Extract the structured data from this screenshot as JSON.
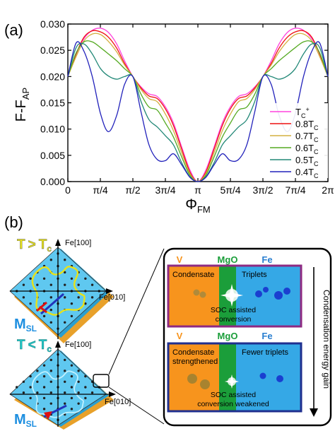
{
  "panel_a_label": "(a)",
  "panel_b_label": "(b)",
  "chart_data": {
    "type": "line",
    "xlabel": "Φ",
    "xlabel_sub": "FM",
    "ylabel": "F-F",
    "ylabel_sub": "AP",
    "xlim": [
      0,
      6.2832
    ],
    "ylim": [
      0,
      0.03
    ],
    "x_ticks": [
      {
        "v": 0,
        "label": "0"
      },
      {
        "v": 0.7854,
        "label": "π/4"
      },
      {
        "v": 1.5708,
        "label": "π/2"
      },
      {
        "v": 2.3562,
        "label": "3π/4"
      },
      {
        "v": 3.1416,
        "label": "π"
      },
      {
        "v": 3.927,
        "label": "5π/4"
      },
      {
        "v": 4.7124,
        "label": "3π/2"
      },
      {
        "v": 5.4978,
        "label": "7π/4"
      },
      {
        "v": 6.2832,
        "label": "2π"
      }
    ],
    "y_ticks": [
      {
        "v": 0,
        "label": "0.000"
      },
      {
        "v": 0.005,
        "label": "0.005"
      },
      {
        "v": 0.01,
        "label": "0.010"
      },
      {
        "v": 0.015,
        "label": "0.015"
      },
      {
        "v": 0.02,
        "label": "0.020"
      },
      {
        "v": 0.025,
        "label": "0.025"
      },
      {
        "v": 0.03,
        "label": "0.030"
      }
    ],
    "series": [
      {
        "name": "T",
        "sub": "C",
        "sup": "+",
        "color": "#ff44dd",
        "x": [
          0,
          0.2,
          0.39,
          0.59,
          0.79,
          0.98,
          1.18,
          1.37,
          1.57,
          1.77,
          1.96,
          2.16,
          2.36,
          2.55,
          2.75,
          2.95,
          3.14
        ],
        "y": [
          0.02,
          0.0243,
          0.0272,
          0.0288,
          0.0292,
          0.0284,
          0.0262,
          0.023,
          0.02,
          0.018,
          0.0167,
          0.0162,
          0.0142,
          0.0112,
          0.0066,
          0.0022,
          0.0
        ]
      },
      {
        "name": "0.8T",
        "sub": "C",
        "sup": "",
        "color": "#ee1111",
        "x": [
          0,
          0.2,
          0.39,
          0.59,
          0.79,
          0.98,
          1.18,
          1.37,
          1.57,
          1.77,
          1.96,
          2.16,
          2.36,
          2.55,
          2.75,
          2.95,
          3.14
        ],
        "y": [
          0.02,
          0.0243,
          0.0275,
          0.0287,
          0.0285,
          0.0275,
          0.0254,
          0.0225,
          0.02,
          0.0178,
          0.0163,
          0.0158,
          0.0138,
          0.0107,
          0.0062,
          0.0018,
          0.0
        ]
      },
      {
        "name": "0.7T",
        "sub": "C",
        "sup": "",
        "color": "#d4b040",
        "x": [
          0,
          0.2,
          0.39,
          0.59,
          0.79,
          0.98,
          1.18,
          1.37,
          1.57,
          1.77,
          1.96,
          2.16,
          2.36,
          2.55,
          2.75,
          2.95,
          3.14
        ],
        "y": [
          0.02,
          0.0238,
          0.0268,
          0.0281,
          0.028,
          0.0267,
          0.0247,
          0.0222,
          0.02,
          0.0175,
          0.0158,
          0.0152,
          0.0128,
          0.0097,
          0.0055,
          0.0015,
          0.0
        ]
      },
      {
        "name": "0.6T",
        "sub": "C",
        "sup": "",
        "color": "#55aa22",
        "x": [
          0,
          0.2,
          0.39,
          0.59,
          0.79,
          0.98,
          1.18,
          1.37,
          1.57,
          1.77,
          1.96,
          2.16,
          2.36,
          2.55,
          2.75,
          2.95,
          3.14
        ],
        "y": [
          0.02,
          0.0245,
          0.0266,
          0.0266,
          0.0255,
          0.0243,
          0.023,
          0.0215,
          0.02,
          0.0166,
          0.0142,
          0.0136,
          0.0111,
          0.0085,
          0.0047,
          0.0012,
          0.0
        ]
      },
      {
        "name": "0.5T",
        "sub": "C",
        "sup": "",
        "color": "#228877",
        "x": [
          0,
          0.2,
          0.39,
          0.59,
          0.79,
          0.98,
          1.18,
          1.37,
          1.57,
          1.77,
          1.96,
          2.16,
          2.36,
          2.55,
          2.75,
          2.95,
          3.14
        ],
        "y": [
          0.02,
          0.0255,
          0.0262,
          0.0243,
          0.0215,
          0.0201,
          0.0195,
          0.02,
          0.02,
          0.0152,
          0.0118,
          0.0104,
          0.0087,
          0.007,
          0.0036,
          0.0009,
          0.0
        ]
      },
      {
        "name": "0.4T",
        "sub": "C",
        "sup": "",
        "color": "#2222bb",
        "x": [
          0,
          0.2,
          0.39,
          0.59,
          0.79,
          0.98,
          1.18,
          1.37,
          1.57,
          1.77,
          1.96,
          2.16,
          2.36,
          2.55,
          2.75,
          2.95,
          3.14
        ],
        "y": [
          0.02,
          0.0264,
          0.0248,
          0.02,
          0.0129,
          0.0095,
          0.0126,
          0.0185,
          0.02,
          0.0132,
          0.007,
          0.0042,
          0.004,
          0.0053,
          0.0032,
          0.0008,
          0.0
        ]
      }
    ],
    "symmetry": "mirror about π",
    "legend_position": "right-middle"
  },
  "panel_b": {
    "top_condition": {
      "T": "T",
      "op": ">",
      "sub": "c"
    },
    "bottom_condition": {
      "T": "T",
      "op": "<",
      "sub": "c"
    },
    "axis_fe100": "Fe[100]",
    "axis_fe010": "Fe[010]",
    "m_label": "M",
    "m_sub": "SL",
    "material_v": "V",
    "material_mgo": "MgO",
    "material_fe": "Fe",
    "top_box": {
      "condensate": "Condensate",
      "triplets": "Triplets",
      "soc_line1": "SOC assisted",
      "soc_line2": "conversion"
    },
    "bottom_box": {
      "condensate_line1": "Condensate",
      "condensate_line2": "strengthened",
      "triplets": "Fewer triplets",
      "soc_line1": "SOC assisted",
      "soc_line2": "conversion weakened"
    },
    "energy_label": "Condensation energy gain",
    "colors": {
      "orange": "#f7941d",
      "green": "#1b9e3a",
      "blue": "#35a8e6",
      "purple": "#8e2a82",
      "navy": "#1f2f8f",
      "yellow": "#e7e21a",
      "cyan": "#22c7c7"
    }
  }
}
